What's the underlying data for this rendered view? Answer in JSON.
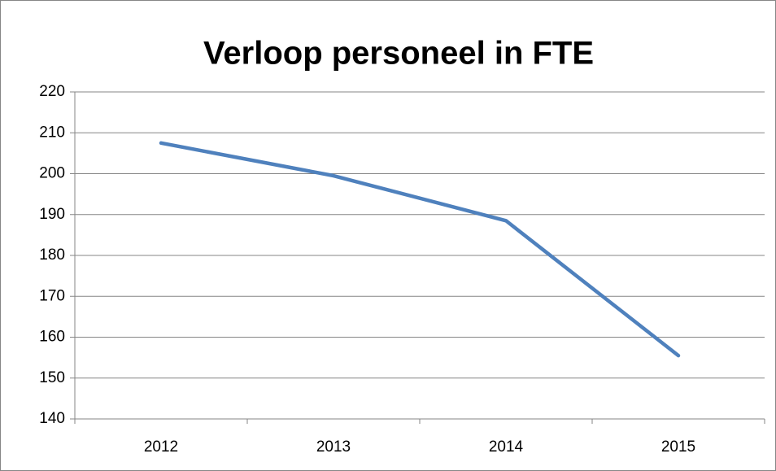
{
  "chart_data": {
    "type": "line",
    "title": "Verloop personeel in FTE",
    "categories": [
      "2012",
      "2013",
      "2014",
      "2015"
    ],
    "values": [
      207.5,
      199.5,
      188.5,
      155.5
    ],
    "color": "#4f81bd",
    "ylim": [
      140,
      220
    ],
    "yticks": [
      140,
      150,
      160,
      170,
      180,
      190,
      200,
      210,
      220
    ],
    "grid": true
  }
}
